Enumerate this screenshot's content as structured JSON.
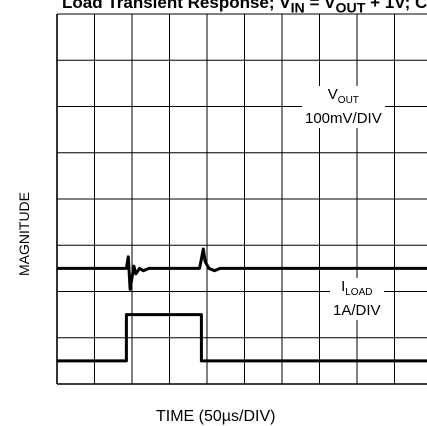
{
  "chart_data": {
    "type": "line",
    "title": "Load Transient Response; V",
    "title_sub1": "IN",
    "title_eq": " = V",
    "title_sub2": "OUT",
    "title_tail": " + 1V; C",
    "ylabel": "MAGNITUDE",
    "xlabel": "TIME (50µs/DIV)",
    "grid": true,
    "divisions": {
      "x": 10,
      "y": 8
    },
    "series": [
      {
        "name_main": "V",
        "name_sub": "OUT",
        "scale": "100mV/DIV",
        "baseline_div": 5.5,
        "points": [
          [
            0,
            5.5
          ],
          [
            1.85,
            5.5
          ],
          [
            1.9,
            5.25
          ],
          [
            1.95,
            5.95
          ],
          [
            2.05,
            5.45
          ],
          [
            2.1,
            5.62
          ],
          [
            2.2,
            5.5
          ],
          [
            2.3,
            5.55
          ],
          [
            2.45,
            5.5
          ],
          [
            3.8,
            5.5
          ],
          [
            3.85,
            5.3
          ],
          [
            3.9,
            5.08
          ],
          [
            3.95,
            5.35
          ],
          [
            4.05,
            5.5
          ],
          [
            4.2,
            5.55
          ],
          [
            4.35,
            5.5
          ],
          [
            10,
            5.5
          ]
        ]
      },
      {
        "name_main": "I",
        "name_sub": "LOAD",
        "scale": "1A/DIV",
        "low_div": 7.5,
        "high_div": 6.5,
        "points": [
          [
            0,
            7.5
          ],
          [
            1.85,
            7.5
          ],
          [
            1.85,
            6.5
          ],
          [
            3.85,
            6.5
          ],
          [
            3.85,
            7.5
          ],
          [
            10,
            7.5
          ]
        ]
      }
    ]
  }
}
